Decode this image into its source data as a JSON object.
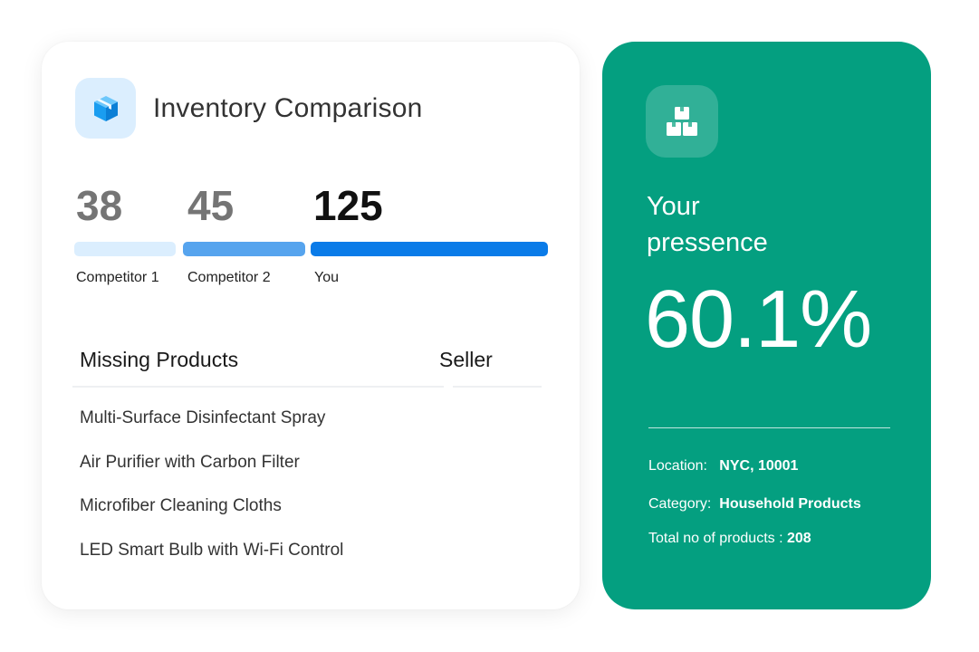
{
  "inventory": {
    "title": "Inventory Comparison",
    "icon": "box-icon",
    "comparisons": [
      {
        "value": "38",
        "label": "Competitor 1",
        "bar_color": "#dbeefe",
        "value_color": "#757575"
      },
      {
        "value": "45",
        "label": "Competitor 2",
        "bar_color": "#56a4ee",
        "value_color": "#757575"
      },
      {
        "value": "125",
        "label": "You",
        "bar_color": "#0a7be8",
        "value_color": "#111111"
      }
    ],
    "table": {
      "headers": [
        "Missing Products",
        "Seller"
      ],
      "rows": [
        "Multi-Surface Disinfectant Spray",
        "Air Purifier with Carbon Filter",
        "Microfiber Cleaning Cloths",
        "LED Smart Bulb with Wi-Fi Control"
      ]
    }
  },
  "presence": {
    "icon": "boxes-icon",
    "title_line1": "Your",
    "title_line2": "pressence",
    "percent": "60.1%",
    "accent_color": "#049f80",
    "location_label": "Location:",
    "location_value": "NYC, 10001",
    "category_label": "Category:",
    "category_value": "Household Products",
    "total_label": "Total no of products :",
    "total_value": "208"
  }
}
